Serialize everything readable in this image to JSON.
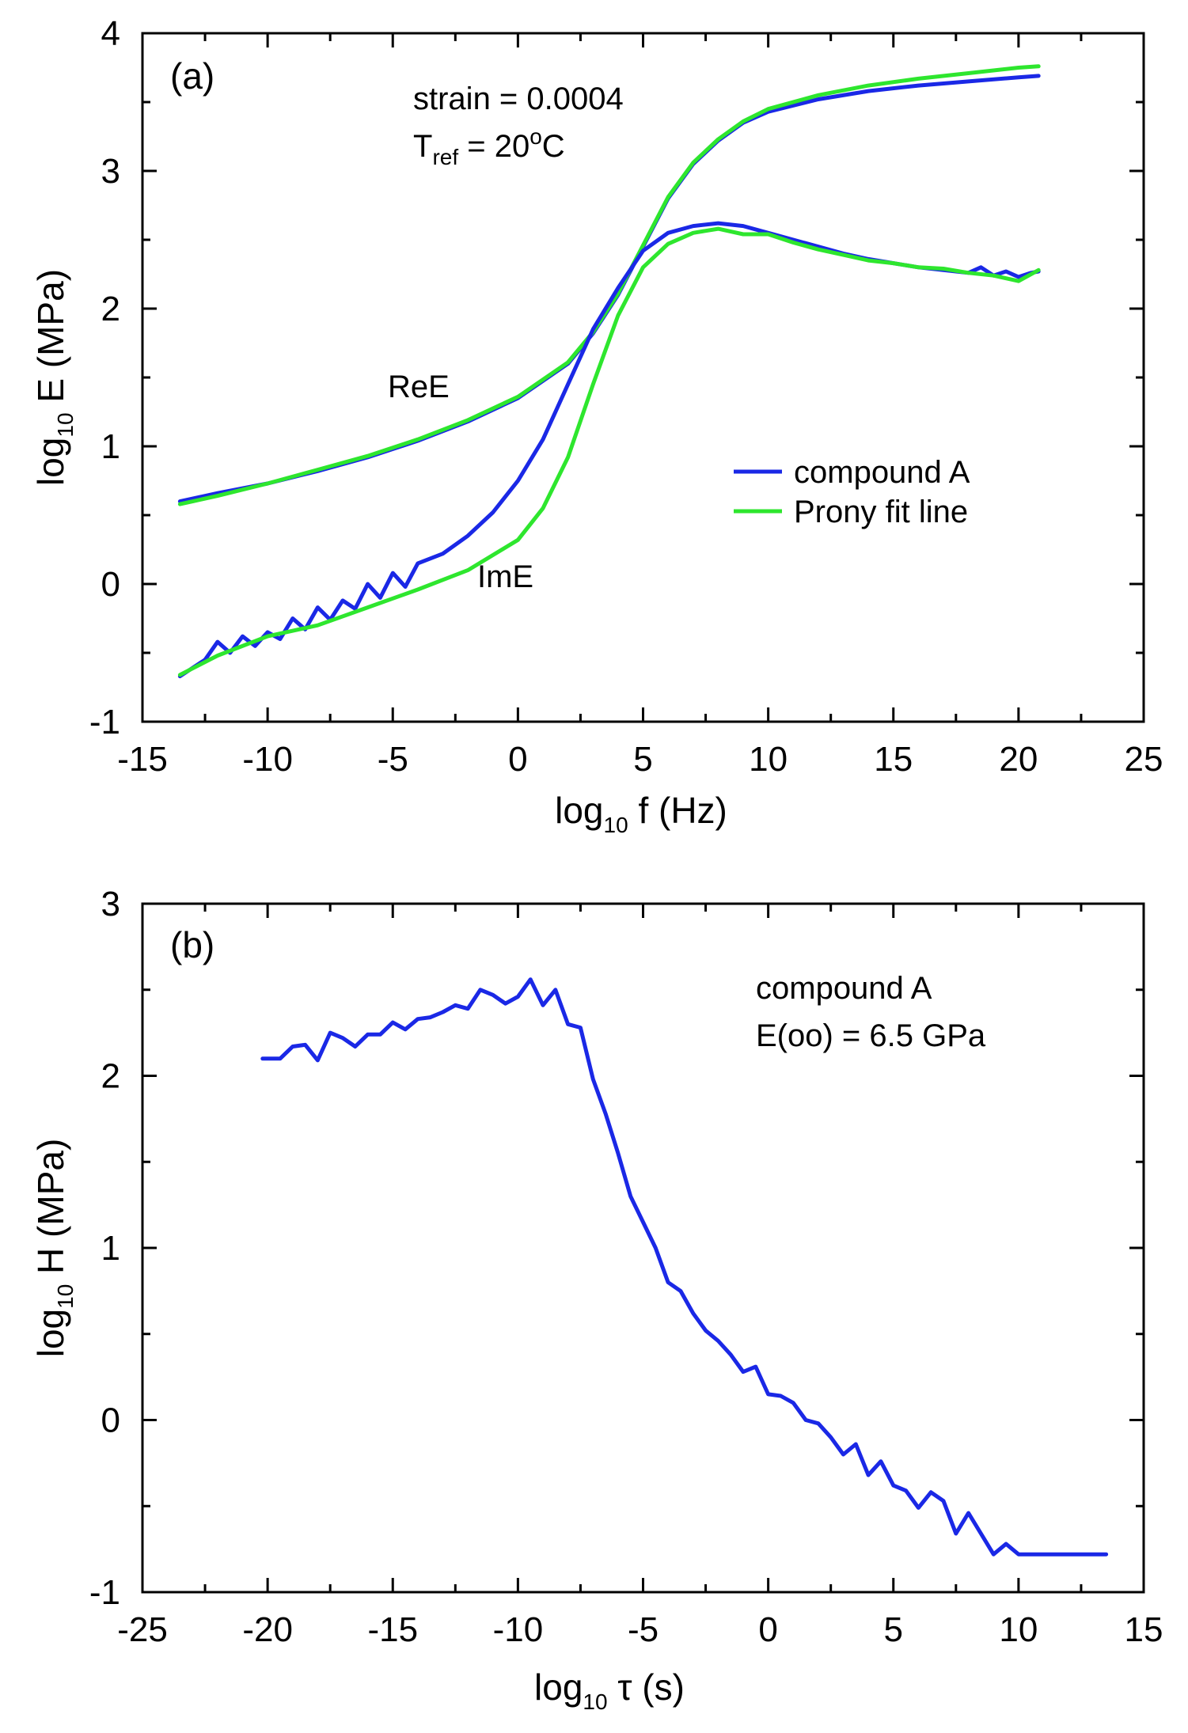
{
  "colors": {
    "compound": "#1a28e6",
    "prony": "#2ee62e"
  },
  "chart_data": [
    {
      "type": "line",
      "panel_label": "(a)",
      "xlim": [
        -15,
        25
      ],
      "ylim": [
        -1,
        4
      ],
      "xticks": [
        "-15",
        "-10",
        "-5",
        "0",
        "5",
        "10",
        "15",
        "20",
        "25"
      ],
      "yticks": [
        "-1",
        "0",
        "1",
        "2",
        "3",
        "4"
      ],
      "xlabel": {
        "main": "log",
        "sub": "10",
        "rest": " f  (Hz)"
      },
      "ylabel": {
        "main": "log",
        "sub": "10",
        "rest": " E  (MPa)"
      },
      "annotations": {
        "strain": "strain = 0.0004",
        "tref_T": "T",
        "tref_sub": "ref",
        "tref_eq": " = 20",
        "tref_deg": "o",
        "tref_C": "C",
        "ree": "ReE",
        "ime": "ImE"
      },
      "legend": [
        "compound A",
        "Prony fit line"
      ],
      "legend_position": "center-right",
      "series": [
        {
          "name": "compound A",
          "component": "ReE",
          "x": [
            -13.5,
            -12,
            -10,
            -8,
            -6,
            -4,
            -2,
            0,
            2,
            3,
            4,
            5,
            6,
            7,
            8,
            9,
            10,
            12,
            14,
            16,
            18,
            20,
            20.8
          ],
          "y": [
            0.6,
            0.66,
            0.73,
            0.82,
            0.92,
            1.04,
            1.18,
            1.35,
            1.6,
            1.82,
            2.1,
            2.45,
            2.8,
            3.05,
            3.22,
            3.35,
            3.43,
            3.52,
            3.58,
            3.62,
            3.65,
            3.68,
            3.69
          ]
        },
        {
          "name": "Prony fit line",
          "component": "ReE",
          "x": [
            -13.5,
            -12,
            -10,
            -8,
            -6,
            -4,
            -2,
            0,
            2,
            3,
            4,
            5,
            6,
            7,
            8,
            9,
            10,
            12,
            14,
            16,
            18,
            20,
            20.8
          ],
          "y": [
            0.58,
            0.64,
            0.73,
            0.83,
            0.93,
            1.05,
            1.19,
            1.36,
            1.61,
            1.83,
            2.11,
            2.46,
            2.81,
            3.06,
            3.23,
            3.36,
            3.45,
            3.55,
            3.62,
            3.67,
            3.71,
            3.75,
            3.76
          ]
        },
        {
          "name": "compound A",
          "component": "ImE",
          "x": [
            -13.5,
            -12.5,
            -12,
            -11.5,
            -11,
            -10.5,
            -10,
            -9.5,
            -9,
            -8.5,
            -8,
            -7.5,
            -7,
            -6.5,
            -6,
            -5.5,
            -5,
            -4.5,
            -4,
            -3,
            -2,
            -1,
            0,
            1,
            2,
            3,
            4,
            5,
            6,
            7,
            8,
            8.5,
            9,
            10,
            11,
            12,
            13,
            14,
            15,
            16,
            17,
            18,
            18.5,
            19,
            19.5,
            20,
            20.5,
            20.8
          ],
          "y": [
            -0.67,
            -0.55,
            -0.42,
            -0.5,
            -0.38,
            -0.45,
            -0.35,
            -0.4,
            -0.25,
            -0.33,
            -0.17,
            -0.26,
            -0.12,
            -0.18,
            0.0,
            -0.1,
            0.08,
            -0.02,
            0.15,
            0.22,
            0.35,
            0.52,
            0.75,
            1.05,
            1.45,
            1.85,
            2.15,
            2.42,
            2.55,
            2.6,
            2.62,
            2.61,
            2.6,
            2.55,
            2.5,
            2.45,
            2.4,
            2.36,
            2.33,
            2.3,
            2.28,
            2.26,
            2.3,
            2.24,
            2.27,
            2.23,
            2.26,
            2.27
          ]
        },
        {
          "name": "Prony fit line",
          "component": "ImE",
          "x": [
            -13.5,
            -12,
            -10,
            -8,
            -6,
            -4,
            -2,
            0,
            1,
            2,
            3,
            4,
            5,
            6,
            7,
            8,
            9,
            10,
            11,
            12,
            13,
            14,
            15,
            16,
            17,
            18,
            19,
            20,
            20.8
          ],
          "y": [
            -0.66,
            -0.52,
            -0.38,
            -0.3,
            -0.17,
            -0.04,
            0.1,
            0.32,
            0.55,
            0.92,
            1.45,
            1.95,
            2.3,
            2.47,
            2.55,
            2.58,
            2.54,
            2.54,
            2.48,
            2.43,
            2.39,
            2.35,
            2.33,
            2.3,
            2.29,
            2.26,
            2.24,
            2.2,
            2.28
          ]
        }
      ]
    },
    {
      "type": "line",
      "panel_label": "(b)",
      "xlim": [
        -25,
        15
      ],
      "ylim": [
        -1,
        3
      ],
      "xticks": [
        "-25",
        "-20",
        "-15",
        "-10",
        "-5",
        "0",
        "5",
        "10",
        "15"
      ],
      "yticks": [
        "-1",
        "0",
        "1",
        "2",
        "3"
      ],
      "xlabel": {
        "main": "log",
        "sub": "10",
        "rest": " τ  (s)"
      },
      "ylabel": {
        "main": "log",
        "sub": "10",
        "rest": " H  (MPa)"
      },
      "annotations": {
        "line1": "compound A",
        "line2": "E(oo) = 6.5 GPa"
      },
      "series": [
        {
          "name": "compound A",
          "x": [
            -20.2,
            -19.5,
            -19,
            -18.5,
            -18,
            -17.5,
            -17,
            -16.5,
            -16,
            -15.5,
            -15,
            -14.5,
            -14,
            -13.5,
            -13,
            -12.5,
            -12,
            -11.5,
            -11,
            -10.5,
            -10,
            -9.5,
            -9,
            -8.5,
            -8,
            -7.5,
            -7,
            -6.5,
            -6,
            -5.5,
            -5,
            -4.5,
            -4,
            -3.5,
            -3,
            -2.5,
            -2,
            -1.5,
            -1,
            -0.5,
            0,
            0.5,
            1,
            1.5,
            2,
            2.5,
            3,
            3.5,
            4,
            4.5,
            5,
            5.5,
            6,
            6.5,
            7,
            7.5,
            8,
            8.5,
            9,
            9.5,
            10,
            10.5,
            11,
            11.5,
            12,
            12.5,
            13,
            13.5
          ],
          "y": [
            2.1,
            2.1,
            2.17,
            2.18,
            2.09,
            2.25,
            2.22,
            2.17,
            2.24,
            2.24,
            2.31,
            2.27,
            2.33,
            2.34,
            2.37,
            2.41,
            2.39,
            2.5,
            2.47,
            2.42,
            2.46,
            2.56,
            2.41,
            2.5,
            2.3,
            2.28,
            1.98,
            1.78,
            1.55,
            1.3,
            1.15,
            1.0,
            0.8,
            0.75,
            0.62,
            0.52,
            0.46,
            0.38,
            0.28,
            0.31,
            0.15,
            0.14,
            0.1,
            0.0,
            -0.02,
            -0.1,
            -0.2,
            -0.14,
            -0.32,
            -0.24,
            -0.38,
            -0.41,
            -0.51,
            -0.42,
            -0.47,
            -0.66,
            -0.54,
            -0.66,
            -0.78,
            -0.72,
            -0.78,
            -0.78,
            -0.78,
            -0.78,
            -0.78,
            -0.78,
            -0.78,
            -0.78
          ]
        }
      ]
    }
  ]
}
